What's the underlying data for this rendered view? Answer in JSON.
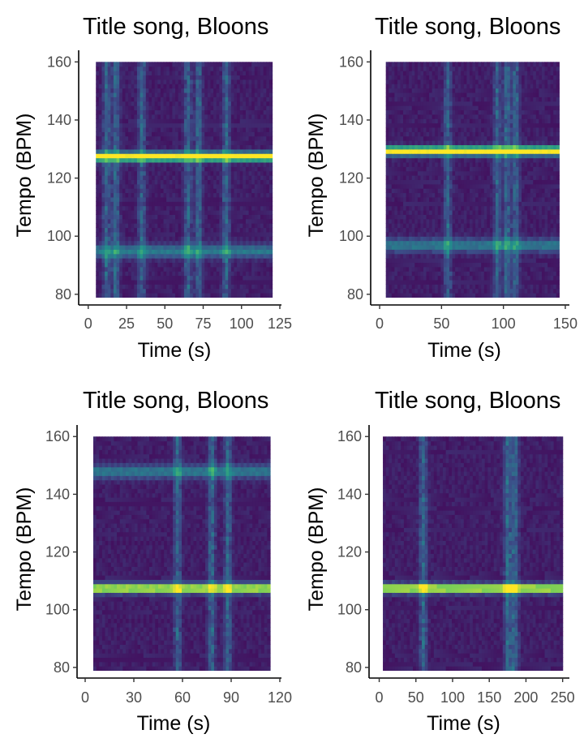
{
  "chart_data": [
    {
      "type": "heatmap",
      "title": "Title song, Bloons",
      "xlabel": "Time (s)",
      "ylabel": "Tempo (BPM)",
      "xlim": [
        -2,
        125
      ],
      "ylim": [
        78,
        164
      ],
      "xticks": [
        0,
        25,
        50,
        75,
        100,
        125
      ],
      "yticks": [
        80,
        100,
        120,
        140,
        160
      ],
      "data_x_range": [
        5,
        120
      ],
      "data_y_range": [
        79,
        160
      ],
      "dominant_tempo": 127.5,
      "secondary_tempo": 95,
      "vertical_highlights": [
        12,
        18,
        35,
        65,
        72,
        90
      ],
      "grid": false,
      "colormap": "viridis"
    },
    {
      "type": "heatmap",
      "title": "Title song, Bloons",
      "xlabel": "Time (s)",
      "ylabel": "Tempo (BPM)",
      "xlim": [
        -2,
        152
      ],
      "ylim": [
        78,
        164
      ],
      "xticks": [
        0,
        50,
        100,
        150
      ],
      "yticks": [
        80,
        100,
        120,
        140,
        160
      ],
      "data_x_range": [
        5,
        145
      ],
      "data_y_range": [
        79,
        160
      ],
      "dominant_tempo": 129.5,
      "secondary_tempo": 97,
      "vertical_highlights": [
        55,
        95,
        103,
        110
      ],
      "grid": false,
      "colormap": "viridis"
    },
    {
      "type": "heatmap",
      "title": "Title song, Bloons",
      "xlabel": "Time (s)",
      "ylabel": "Tempo (BPM)",
      "xlim": [
        -1,
        120
      ],
      "ylim": [
        78,
        164
      ],
      "xticks": [
        0,
        30,
        60,
        90,
        120
      ],
      "yticks": [
        80,
        100,
        120,
        140,
        160
      ],
      "data_x_range": [
        5,
        114
      ],
      "data_y_range": [
        79,
        160
      ],
      "dominant_tempo": 107.5,
      "secondary_tempo": 148,
      "vertical_highlights": [
        57,
        78,
        88
      ],
      "grid": false,
      "colormap": "viridis"
    },
    {
      "type": "heatmap",
      "title": "Title song, Bloons",
      "xlabel": "Time (s)",
      "ylabel": "Tempo (BPM)",
      "xlim": [
        -5,
        257
      ],
      "ylim": [
        78,
        164
      ],
      "xticks": [
        0,
        50,
        100,
        150,
        200,
        250
      ],
      "yticks": [
        80,
        100,
        120,
        140,
        160
      ],
      "data_x_range": [
        5,
        250
      ],
      "data_y_range": [
        79,
        160
      ],
      "dominant_tempo": 107.5,
      "secondary_tempo": 0,
      "vertical_highlights": [
        60,
        175,
        185
      ],
      "grid": false,
      "colormap": "viridis"
    }
  ]
}
